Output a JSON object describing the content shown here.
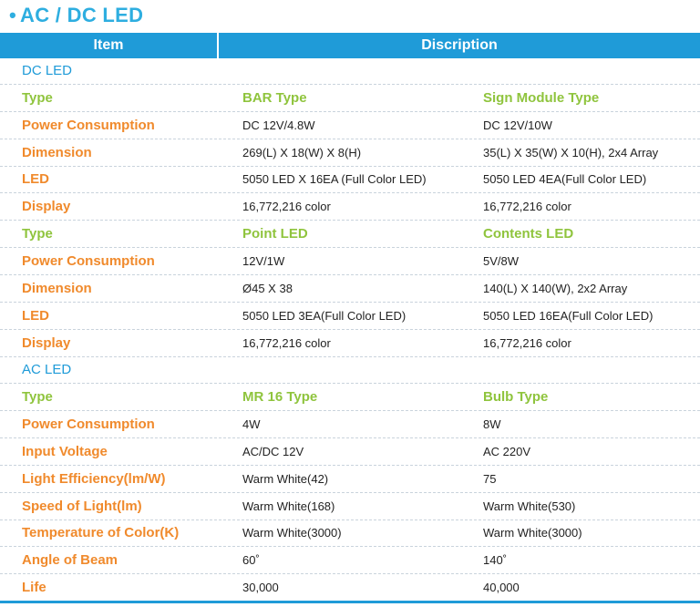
{
  "title": "AC / DC LED",
  "header": {
    "item": "Item",
    "description": "Discription"
  },
  "rows": [
    {
      "kind": "section",
      "cells": [
        "DC LED",
        "",
        ""
      ]
    },
    {
      "kind": "type",
      "cells": [
        "Type",
        "BAR Type",
        "Sign Module Type"
      ]
    },
    {
      "kind": "spec",
      "cells": [
        "Power Consumption",
        "DC 12V/4.8W",
        "DC 12V/10W"
      ]
    },
    {
      "kind": "spec",
      "cells": [
        "Dimension",
        "269(L) X 18(W) X 8(H)",
        "35(L) X 35(W) X 10(H), 2x4 Array"
      ]
    },
    {
      "kind": "spec",
      "cells": [
        "LED",
        "5050 LED X 16EA (Full Color LED)",
        "5050 LED 4EA(Full Color LED)"
      ]
    },
    {
      "kind": "spec",
      "cells": [
        "Display",
        "16,772,216 color",
        "16,772,216 color"
      ]
    },
    {
      "kind": "type",
      "cells": [
        "Type",
        "Point LED",
        "Contents LED"
      ]
    },
    {
      "kind": "spec",
      "cells": [
        "Power Consumption",
        "12V/1W",
        "5V/8W"
      ]
    },
    {
      "kind": "spec",
      "cells": [
        "Dimension",
        "Ø45 X 38",
        "140(L) X 140(W), 2x2 Array"
      ]
    },
    {
      "kind": "spec",
      "cells": [
        "LED",
        "5050 LED 3EA(Full Color LED)",
        "5050 LED 16EA(Full Color LED)"
      ]
    },
    {
      "kind": "spec",
      "cells": [
        "Display",
        "16,772,216 color",
        "16,772,216 color"
      ]
    },
    {
      "kind": "section",
      "cells": [
        "AC LED",
        "",
        ""
      ]
    },
    {
      "kind": "type",
      "cells": [
        "Type",
        "MR 16 Type",
        "Bulb Type"
      ]
    },
    {
      "kind": "spec",
      "cells": [
        "Power Consumption",
        "4W",
        "8W"
      ]
    },
    {
      "kind": "spec",
      "cells": [
        "Input Voltage",
        "AC/DC 12V",
        "AC 220V"
      ]
    },
    {
      "kind": "spec",
      "cells": [
        "Light Efficiency(lm/W)",
        "Warm White(42)",
        "75"
      ]
    },
    {
      "kind": "spec",
      "cells": [
        "Speed of Light(lm)",
        "Warm White(168)",
        "Warm White(530)"
      ]
    },
    {
      "kind": "spec",
      "cells": [
        "Temperature of Color(K)",
        "Warm White(3000)",
        "Warm White(3000)"
      ]
    },
    {
      "kind": "spec",
      "cells": [
        "Angle of Beam",
        "60˚",
        "140˚"
      ]
    },
    {
      "kind": "spec",
      "cells": [
        "Life",
        "30,000",
        "40,000"
      ]
    }
  ]
}
